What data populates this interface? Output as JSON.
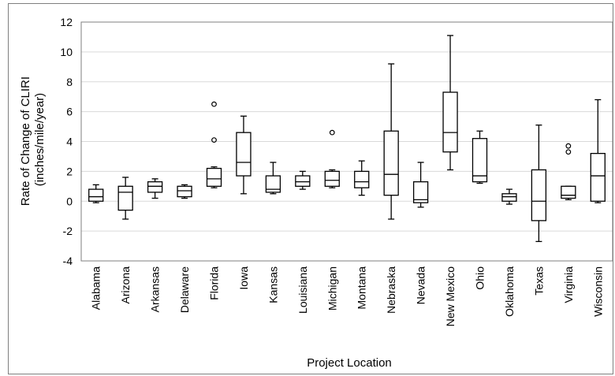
{
  "chart_data": {
    "type": "box",
    "xlabel": "Project Location",
    "ylabel_lines": [
      "Rate of Change of CLIRI",
      "(inches/mile/year)"
    ],
    "ylim": [
      -4,
      12
    ],
    "yticks": [
      -4,
      -2,
      0,
      2,
      4,
      6,
      8,
      10,
      12
    ],
    "grid": "horizontal",
    "categories": [
      "Alabama",
      "Arizona",
      "Arkansas",
      "Delaware",
      "Florida",
      "Iowa",
      "Kansas",
      "Louisiana",
      "Michigan",
      "Montana",
      "Nebraska",
      "Nevada",
      "New Mexico",
      "Ohio",
      "Oklahoma",
      "Texas",
      "Virginia",
      "Wisconsin"
    ],
    "boxes": [
      {
        "min": -0.1,
        "q1": 0.0,
        "median": 0.3,
        "q3": 0.8,
        "max": 1.1,
        "outliers": []
      },
      {
        "min": -1.2,
        "q1": -0.6,
        "median": 0.6,
        "q3": 1.0,
        "max": 1.6,
        "outliers": []
      },
      {
        "min": 0.2,
        "q1": 0.6,
        "median": 1.0,
        "q3": 1.3,
        "max": 1.5,
        "outliers": []
      },
      {
        "min": 0.2,
        "q1": 0.3,
        "median": 0.7,
        "q3": 1.0,
        "max": 1.1,
        "outliers": []
      },
      {
        "min": 0.9,
        "q1": 1.0,
        "median": 1.5,
        "q3": 2.2,
        "max": 2.3,
        "outliers": [
          4.1,
          6.5
        ]
      },
      {
        "min": 0.5,
        "q1": 1.7,
        "median": 2.6,
        "q3": 4.6,
        "max": 5.7,
        "outliers": []
      },
      {
        "min": 0.5,
        "q1": 0.6,
        "median": 0.8,
        "q3": 1.7,
        "max": 2.6,
        "outliers": []
      },
      {
        "min": 0.8,
        "q1": 1.0,
        "median": 1.3,
        "q3": 1.7,
        "max": 2.0,
        "outliers": []
      },
      {
        "min": 0.9,
        "q1": 1.0,
        "median": 1.4,
        "q3": 2.0,
        "max": 2.1,
        "outliers": [
          4.6
        ]
      },
      {
        "min": 0.4,
        "q1": 0.9,
        "median": 1.3,
        "q3": 2.0,
        "max": 2.7,
        "outliers": []
      },
      {
        "min": -1.2,
        "q1": 0.4,
        "median": 1.8,
        "q3": 4.7,
        "max": 9.2,
        "outliers": []
      },
      {
        "min": -0.4,
        "q1": -0.1,
        "median": 0.1,
        "q3": 1.3,
        "max": 2.6,
        "outliers": []
      },
      {
        "min": 2.1,
        "q1": 3.3,
        "median": 4.6,
        "q3": 7.3,
        "max": 11.1,
        "outliers": []
      },
      {
        "min": 1.2,
        "q1": 1.3,
        "median": 1.7,
        "q3": 4.2,
        "max": 4.7,
        "outliers": []
      },
      {
        "min": -0.2,
        "q1": 0.0,
        "median": 0.3,
        "q3": 0.5,
        "max": 0.8,
        "outliers": []
      },
      {
        "min": -2.7,
        "q1": -1.3,
        "median": 0.0,
        "q3": 2.1,
        "max": 5.1,
        "outliers": []
      },
      {
        "min": 0.1,
        "q1": 0.2,
        "median": 0.4,
        "q3": 1.0,
        "max": 1.0,
        "outliers": [
          3.3,
          3.7
        ]
      },
      {
        "min": -0.1,
        "q1": 0.0,
        "median": 1.7,
        "q3": 3.2,
        "max": 6.8,
        "outliers": []
      }
    ]
  }
}
